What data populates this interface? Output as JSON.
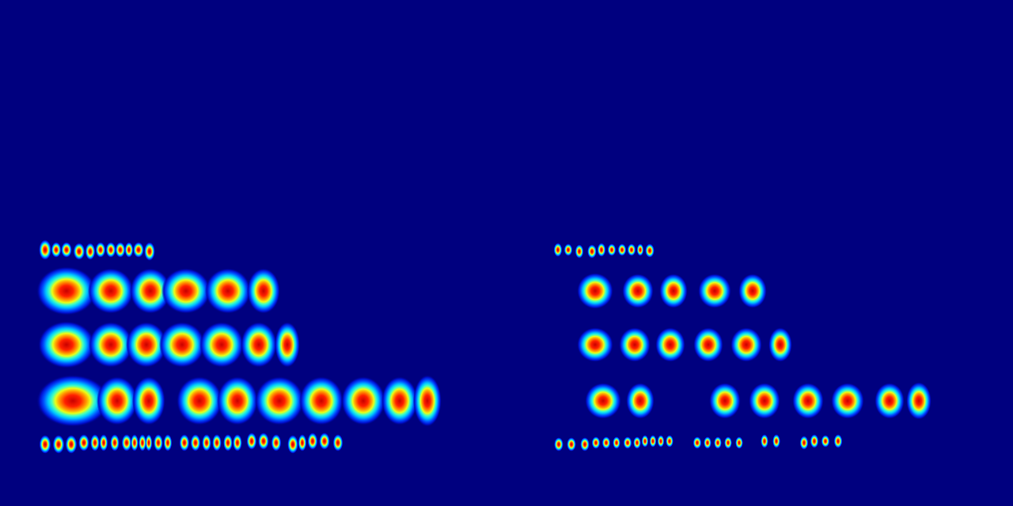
{
  "chart_data": {
    "type": "scatter",
    "xlim": [
      0,
      1280
    ],
    "ylim": [
      0,
      640
    ],
    "xticks": [
      0,
      1280
    ],
    "yticks": [
      0,
      640
    ],
    "tick_labels": false,
    "grid": false,
    "points": [
      [
        57,
        316,
        16,
        26
      ],
      [
        71,
        316,
        13,
        20
      ],
      [
        84,
        316,
        14,
        20
      ],
      [
        100,
        318,
        15,
        22
      ],
      [
        114,
        318,
        13,
        22
      ],
      [
        127,
        316,
        13,
        20
      ],
      [
        140,
        316,
        13,
        20
      ],
      [
        152,
        316,
        13,
        20
      ],
      [
        163,
        316,
        11,
        20
      ],
      [
        175,
        316,
        14,
        20
      ],
      [
        189,
        318,
        14,
        24
      ],
      [
        84,
        368,
        76,
        62
      ],
      [
        140,
        368,
        58,
        58
      ],
      [
        190,
        368,
        52,
        58
      ],
      [
        235,
        368,
        62,
        58
      ],
      [
        288,
        368,
        58,
        58
      ],
      [
        333,
        368,
        42,
        58
      ],
      [
        84,
        436,
        72,
        60
      ],
      [
        140,
        436,
        56,
        58
      ],
      [
        185,
        436,
        52,
        58
      ],
      [
        230,
        436,
        58,
        58
      ],
      [
        280,
        436,
        56,
        58
      ],
      [
        327,
        436,
        46,
        58
      ],
      [
        363,
        436,
        32,
        58
      ],
      [
        92,
        507,
        92,
        66
      ],
      [
        148,
        507,
        52,
        62
      ],
      [
        188,
        507,
        42,
        62
      ],
      [
        252,
        507,
        58,
        62
      ],
      [
        300,
        507,
        52,
        62
      ],
      [
        353,
        507,
        62,
        62
      ],
      [
        406,
        507,
        56,
        62
      ],
      [
        459,
        507,
        56,
        62
      ],
      [
        505,
        507,
        46,
        62
      ],
      [
        540,
        507,
        36,
        66
      ],
      [
        57,
        562,
        15,
        24
      ],
      [
        74,
        562,
        15,
        24
      ],
      [
        90,
        562,
        15,
        24
      ],
      [
        106,
        560,
        14,
        22
      ],
      [
        120,
        560,
        12,
        22
      ],
      [
        131,
        560,
        11,
        22
      ],
      [
        145,
        560,
        12,
        22
      ],
      [
        160,
        560,
        13,
        22
      ],
      [
        170,
        560,
        10,
        22
      ],
      [
        180,
        560,
        10,
        22
      ],
      [
        188,
        560,
        9,
        22
      ],
      [
        200,
        560,
        12,
        22
      ],
      [
        212,
        560,
        11,
        22
      ],
      [
        233,
        560,
        13,
        22
      ],
      [
        247,
        560,
        13,
        22
      ],
      [
        261,
        560,
        12,
        22
      ],
      [
        274,
        560,
        12,
        22
      ],
      [
        288,
        560,
        12,
        22
      ],
      [
        300,
        560,
        12,
        22
      ],
      [
        318,
        558,
        13,
        22
      ],
      [
        333,
        558,
        14,
        22
      ],
      [
        349,
        560,
        13,
        22
      ],
      [
        370,
        562,
        14,
        24
      ],
      [
        382,
        560,
        11,
        22
      ],
      [
        395,
        558,
        13,
        22
      ],
      [
        410,
        558,
        14,
        22
      ],
      [
        427,
        560,
        13,
        22
      ],
      [
        705,
        316,
        11,
        18
      ],
      [
        718,
        316,
        11,
        16
      ],
      [
        732,
        318,
        11,
        18
      ],
      [
        748,
        318,
        12,
        18
      ],
      [
        760,
        316,
        11,
        18
      ],
      [
        773,
        316,
        11,
        16
      ],
      [
        786,
        316,
        11,
        16
      ],
      [
        798,
        316,
        11,
        16
      ],
      [
        809,
        316,
        9,
        16
      ],
      [
        821,
        317,
        12,
        18
      ],
      [
        752,
        368,
        46,
        46
      ],
      [
        806,
        368,
        40,
        44
      ],
      [
        851,
        368,
        36,
        44
      ],
      [
        903,
        368,
        42,
        44
      ],
      [
        951,
        368,
        36,
        44
      ],
      [
        752,
        436,
        46,
        44
      ],
      [
        802,
        436,
        40,
        44
      ],
      [
        847,
        436,
        38,
        44
      ],
      [
        895,
        436,
        38,
        44
      ],
      [
        943,
        436,
        40,
        44
      ],
      [
        986,
        436,
        30,
        44
      ],
      [
        762,
        507,
        46,
        46
      ],
      [
        809,
        507,
        36,
        46
      ],
      [
        916,
        507,
        40,
        46
      ],
      [
        966,
        507,
        40,
        46
      ],
      [
        1021,
        507,
        40,
        46
      ],
      [
        1071,
        507,
        42,
        46
      ],
      [
        1124,
        507,
        38,
        46
      ],
      [
        1161,
        507,
        32,
        48
      ],
      [
        706,
        562,
        12,
        18
      ],
      [
        722,
        562,
        12,
        18
      ],
      [
        739,
        562,
        12,
        18
      ],
      [
        753,
        560,
        11,
        16
      ],
      [
        766,
        560,
        11,
        16
      ],
      [
        779,
        560,
        10,
        16
      ],
      [
        793,
        560,
        11,
        16
      ],
      [
        805,
        560,
        10,
        16
      ],
      [
        815,
        558,
        9,
        16
      ],
      [
        825,
        558,
        9,
        16
      ],
      [
        835,
        558,
        9,
        16
      ],
      [
        846,
        558,
        10,
        16
      ],
      [
        881,
        560,
        11,
        16
      ],
      [
        894,
        560,
        10,
        16
      ],
      [
        907,
        560,
        10,
        16
      ],
      [
        920,
        560,
        10,
        16
      ],
      [
        934,
        560,
        10,
        16
      ],
      [
        966,
        558,
        10,
        18
      ],
      [
        981,
        558,
        10,
        18
      ],
      [
        1016,
        560,
        11,
        18
      ],
      [
        1029,
        558,
        11,
        18
      ],
      [
        1043,
        558,
        11,
        16
      ],
      [
        1059,
        558,
        11,
        18
      ]
    ]
  }
}
